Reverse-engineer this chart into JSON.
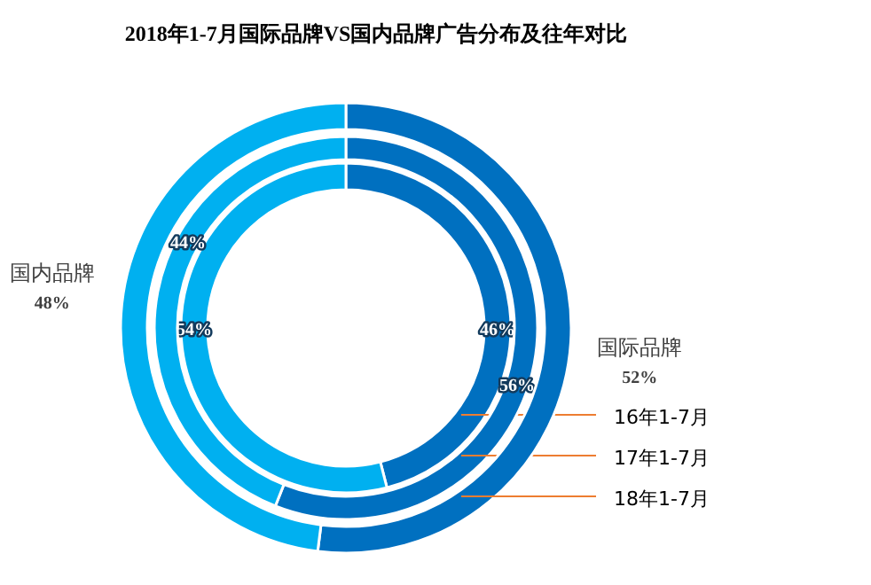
{
  "chart_data": {
    "type": "donut",
    "title": "2018年1-7月国际品牌VS国内品牌广告分布及往年对比",
    "categories": [
      "国际品牌",
      "国内品牌"
    ],
    "colors": [
      "#0070c0",
      "#00b0f0"
    ],
    "legend": "right",
    "series": [
      {
        "name": "16年1-7月",
        "values": [
          46,
          54
        ],
        "value_labels": [
          "46%",
          "54%"
        ]
      },
      {
        "name": "17年1-7月",
        "values": [
          56,
          44
        ],
        "value_labels": [
          "56%",
          "44%"
        ]
      },
      {
        "name": "18年1-7月",
        "values": [
          52,
          48
        ],
        "value_labels": [
          "52%",
          "48%"
        ]
      }
    ]
  }
}
